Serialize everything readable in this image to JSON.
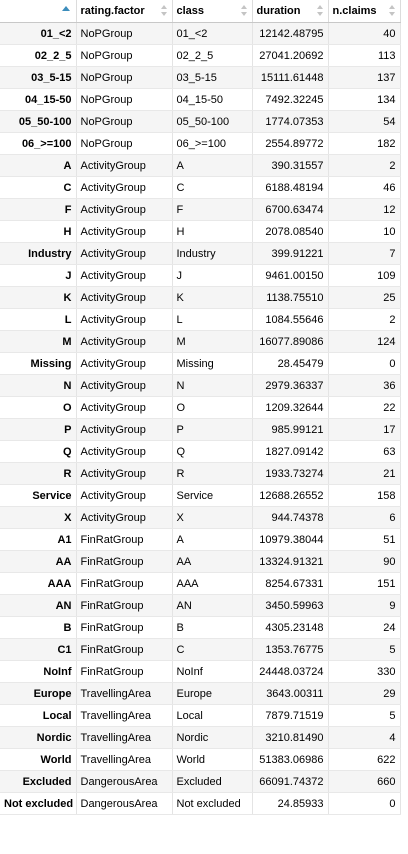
{
  "table": {
    "columns": [
      {
        "label": "",
        "sortable": false
      },
      {
        "label": "rating.factor",
        "sortable": true
      },
      {
        "label": "class",
        "sortable": true
      },
      {
        "label": "duration",
        "sortable": true
      },
      {
        "label": "n.claims",
        "sortable": true
      }
    ],
    "sorted_column": "rownames",
    "sort_direction": "ascending",
    "rows": [
      [
        "01_<2",
        "NoPGroup",
        "01_<2",
        "12142.48795",
        "40"
      ],
      [
        "02_2_5",
        "NoPGroup",
        "02_2_5",
        "27041.20692",
        "113"
      ],
      [
        "03_5-15",
        "NoPGroup",
        "03_5-15",
        "15111.61448",
        "137"
      ],
      [
        "04_15-50",
        "NoPGroup",
        "04_15-50",
        "7492.32245",
        "134"
      ],
      [
        "05_50-100",
        "NoPGroup",
        "05_50-100",
        "1774.07353",
        "54"
      ],
      [
        "06_>=100",
        "NoPGroup",
        "06_>=100",
        "2554.89772",
        "182"
      ],
      [
        "A",
        "ActivityGroup",
        "A",
        "390.31557",
        "2"
      ],
      [
        "C",
        "ActivityGroup",
        "C",
        "6188.48194",
        "46"
      ],
      [
        "F",
        "ActivityGroup",
        "F",
        "6700.63474",
        "12"
      ],
      [
        "H",
        "ActivityGroup",
        "H",
        "2078.08540",
        "10"
      ],
      [
        "Industry",
        "ActivityGroup",
        "Industry",
        "399.91221",
        "7"
      ],
      [
        "J",
        "ActivityGroup",
        "J",
        "9461.00150",
        "109"
      ],
      [
        "K",
        "ActivityGroup",
        "K",
        "1138.75510",
        "25"
      ],
      [
        "L",
        "ActivityGroup",
        "L",
        "1084.55646",
        "2"
      ],
      [
        "M",
        "ActivityGroup",
        "M",
        "16077.89086",
        "124"
      ],
      [
        "Missing",
        "ActivityGroup",
        "Missing",
        "28.45479",
        "0"
      ],
      [
        "N",
        "ActivityGroup",
        "N",
        "2979.36337",
        "36"
      ],
      [
        "O",
        "ActivityGroup",
        "O",
        "1209.32644",
        "22"
      ],
      [
        "P",
        "ActivityGroup",
        "P",
        "985.99121",
        "17"
      ],
      [
        "Q",
        "ActivityGroup",
        "Q",
        "1827.09142",
        "63"
      ],
      [
        "R",
        "ActivityGroup",
        "R",
        "1933.73274",
        "21"
      ],
      [
        "Service",
        "ActivityGroup",
        "Service",
        "12688.26552",
        "158"
      ],
      [
        "X",
        "ActivityGroup",
        "X",
        "944.74378",
        "6"
      ],
      [
        "A1",
        "FinRatGroup",
        "A",
        "10979.38044",
        "51"
      ],
      [
        "AA",
        "FinRatGroup",
        "AA",
        "13324.91321",
        "90"
      ],
      [
        "AAA",
        "FinRatGroup",
        "AAA",
        "8254.67331",
        "151"
      ],
      [
        "AN",
        "FinRatGroup",
        "AN",
        "3450.59963",
        "9"
      ],
      [
        "B",
        "FinRatGroup",
        "B",
        "4305.23148",
        "24"
      ],
      [
        "C1",
        "FinRatGroup",
        "C",
        "1353.76775",
        "5"
      ],
      [
        "NoInf",
        "FinRatGroup",
        "NoInf",
        "24448.03724",
        "330"
      ],
      [
        "Europe",
        "TravellingArea",
        "Europe",
        "3643.00311",
        "29"
      ],
      [
        "Local",
        "TravellingArea",
        "Local",
        "7879.71519",
        "5"
      ],
      [
        "Nordic",
        "TravellingArea",
        "Nordic",
        "3210.81490",
        "4"
      ],
      [
        "World",
        "TravellingArea",
        "World",
        "51383.06986",
        "622"
      ],
      [
        "Excluded",
        "DangerousArea",
        "Excluded",
        "66091.74372",
        "660"
      ],
      [
        "Not excluded",
        "DangerousArea",
        "Not excluded",
        "24.85933",
        "0"
      ]
    ]
  },
  "icons": {
    "sort_active": "sort-ascending-icon",
    "sort_inactive": "sort-both-icon"
  },
  "colors": {
    "sort_active": "#3c8dbc",
    "sort_inactive": "#c4c4c4",
    "row_stripe": "#f5f5f5"
  }
}
